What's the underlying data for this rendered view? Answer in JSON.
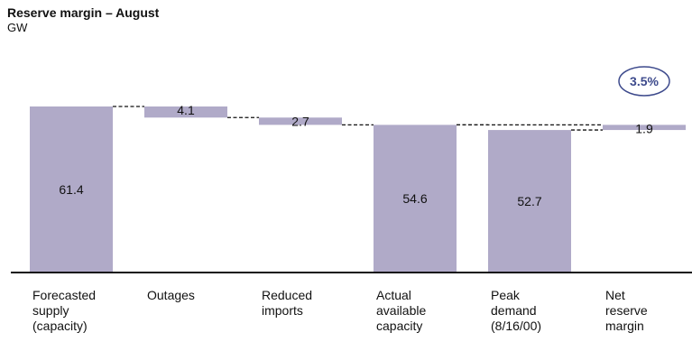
{
  "chart_data": {
    "type": "bar",
    "subtype": "waterfall",
    "title": "Reserve margin – August",
    "subtitle": "GW",
    "categories": [
      [
        "Forecasted",
        "supply",
        "(capacity)"
      ],
      [
        "Outages"
      ],
      [
        "Reduced",
        "imports"
      ],
      [
        "Actual",
        "available",
        "capacity"
      ],
      [
        "Peak",
        "demand",
        "(8/16/00)"
      ],
      [
        "Net",
        "reserve",
        "margin"
      ]
    ],
    "bars": [
      {
        "kind": "total",
        "value": 61.4,
        "start": 0,
        "end": 61.4,
        "label": "61.4"
      },
      {
        "kind": "step",
        "value": 4.1,
        "start": 57.3,
        "end": 61.4,
        "label": "4.1"
      },
      {
        "kind": "step",
        "value": 2.7,
        "start": 54.6,
        "end": 57.3,
        "label": "2.7"
      },
      {
        "kind": "total",
        "value": 54.6,
        "start": 0,
        "end": 54.6,
        "label": "54.6"
      },
      {
        "kind": "total",
        "value": 52.7,
        "start": 0,
        "end": 52.7,
        "label": "52.7"
      },
      {
        "kind": "step",
        "value": 1.9,
        "start": 52.7,
        "end": 54.6,
        "label": "1.9"
      }
    ],
    "callout": "3.5%",
    "bar_color": "#b0aac8",
    "callout_color": "#3d4a8c",
    "connectors": "dashed"
  }
}
